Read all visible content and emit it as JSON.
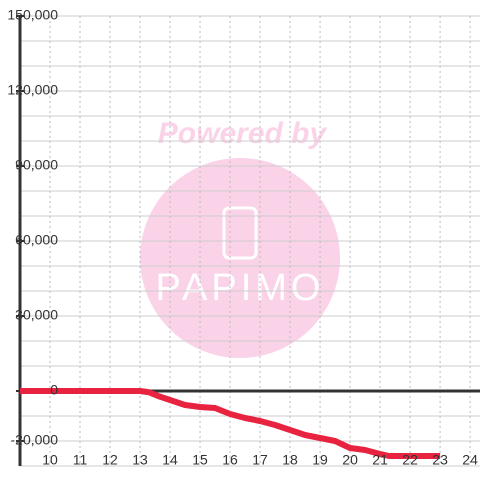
{
  "chart_data": {
    "type": "line",
    "watermark": {
      "headline": "Powered by",
      "brand": "PAPIMO"
    },
    "x": [
      9,
      13,
      13.3,
      13.6,
      14,
      14.5,
      15,
      15.5,
      16,
      16.5,
      17,
      17.5,
      18,
      18.5,
      19,
      19.5,
      20,
      20.5,
      21,
      21.3,
      22,
      23
    ],
    "series": [
      {
        "color": "#e8233f",
        "values": [
          0,
          0,
          -500,
          -2000,
          -3600,
          -5600,
          -6400,
          -6800,
          -9200,
          -10800,
          -12000,
          -13600,
          -15600,
          -17600,
          -18800,
          -20000,
          -22800,
          -23600,
          -25200,
          -26000,
          -26000,
          -26000
        ]
      }
    ],
    "xlim": [
      9,
      24.33
    ],
    "ylim": [
      -30000,
      150000
    ],
    "xticks": [
      10,
      11,
      12,
      13,
      14,
      15,
      16,
      17,
      18,
      19,
      20,
      21,
      22,
      23,
      24
    ],
    "yticks": [
      {
        "value": 150000,
        "label": "150,000"
      },
      {
        "value": 120000,
        "label": "120,000"
      },
      {
        "value": 90000,
        "label": "90,000"
      },
      {
        "value": 60000,
        "label": "60,000"
      },
      {
        "value": 30000,
        "label": "30,000"
      },
      0,
      {
        "value": -20000,
        "label": "-20,000"
      }
    ],
    "grid": true,
    "minor_grid_step": 10000
  }
}
